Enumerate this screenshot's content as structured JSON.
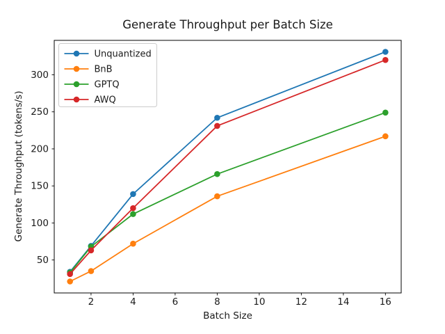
{
  "figure": {
    "background": "#ffffff",
    "border_color": "#000000",
    "text_color": "#1a1a1a",
    "legend_border_color": "#cccccc"
  },
  "chart_data": {
    "type": "line",
    "title": "Generate Throughput per Batch Size",
    "xlabel": "Batch Size",
    "ylabel": "Generate Throughput (tokens/s)",
    "x": [
      1,
      2,
      4,
      8,
      16
    ],
    "series": [
      {
        "name": "Unquantized",
        "color": "#1f77b4",
        "values": [
          34,
          69,
          139,
          242,
          331
        ]
      },
      {
        "name": "BnB",
        "color": "#ff7f0e",
        "values": [
          21,
          35,
          72,
          136,
          217
        ]
      },
      {
        "name": "GPTQ",
        "color": "#2ca02c",
        "values": [
          33,
          68,
          112,
          166,
          249
        ]
      },
      {
        "name": "AWQ",
        "color": "#d62728",
        "values": [
          31,
          63,
          120,
          231,
          320
        ]
      }
    ],
    "xticks": [
      2,
      4,
      6,
      8,
      10,
      12,
      14,
      16
    ],
    "yticks": [
      50,
      100,
      150,
      200,
      250,
      300
    ],
    "xlim": [
      0.25,
      16.75
    ],
    "ylim": [
      5.5,
      346.5
    ],
    "grid": false,
    "marker": "o",
    "legend_position": "upper-left"
  }
}
